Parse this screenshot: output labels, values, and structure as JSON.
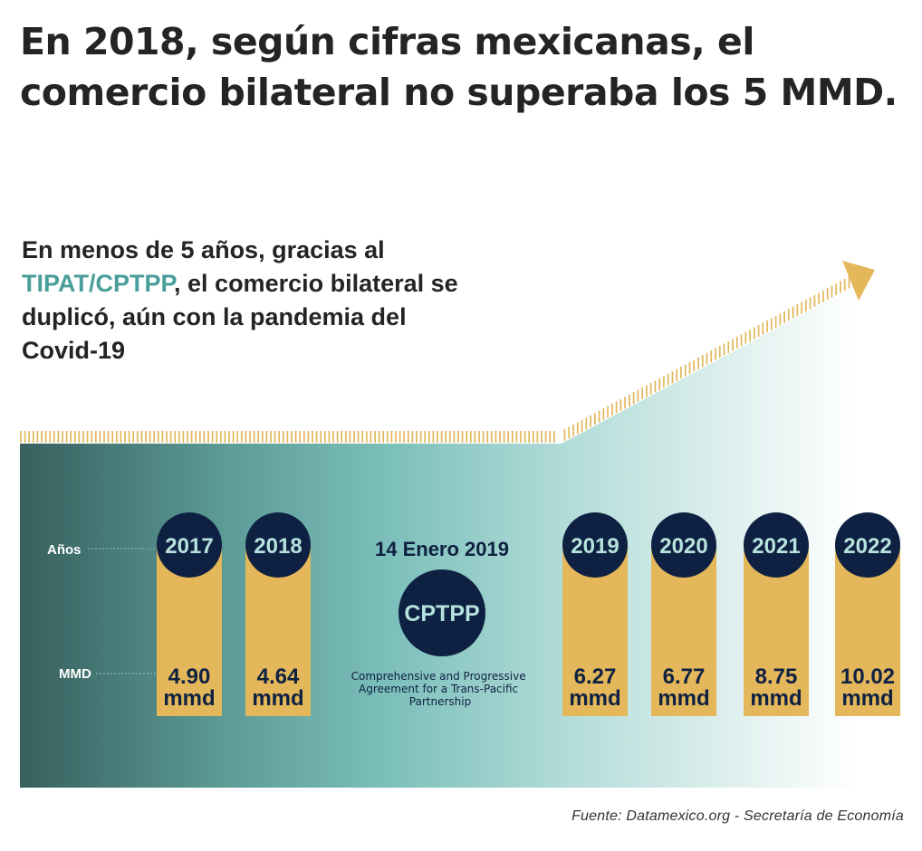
{
  "headline": "En 2018,  según cifras mexicanas, el comercio bilateral no superaba los 5 MMD.",
  "lead": {
    "before": "En menos de 5 años, gracias al ",
    "highlight": "TIPAT/CPTPP",
    "after": ", el comercio bilateral se duplicó, aún con la pandemia del Covid-19"
  },
  "row_labels": {
    "years": "Años",
    "values": "MMD"
  },
  "milestone": {
    "date": "14 Enero 2019",
    "acronym": "CPTPP",
    "description_lines": [
      "Comprehensive and Progressive",
      "Agreement for a Trans-Pacific",
      "Partnership"
    ]
  },
  "unit_label": "mmd",
  "chart_data": {
    "type": "table",
    "categories": [
      "2017",
      "2018",
      "2019",
      "2020",
      "2021",
      "2022"
    ],
    "values": [
      4.9,
      4.64,
      6.27,
      6.77,
      8.75,
      10.02
    ],
    "value_labels": [
      "4.90",
      "4.64",
      "6.27",
      "6.77",
      "8.75",
      "10.02"
    ],
    "unit": "mmd",
    "title": "",
    "xlabel": "Años",
    "ylabel": "MMD"
  },
  "source": "Fuente: Datamexico.org -  Secretaría de Economía",
  "colors": {
    "navy": "#0f2142",
    "gold": "#e3b75a",
    "teal_dark": "#37605e",
    "teal_mid": "#7cbfbb",
    "teal_light": "#b2dcd8",
    "headline_text": "#242424",
    "accent_text": "#4a9e9a",
    "year_text": "#b6e3de"
  }
}
